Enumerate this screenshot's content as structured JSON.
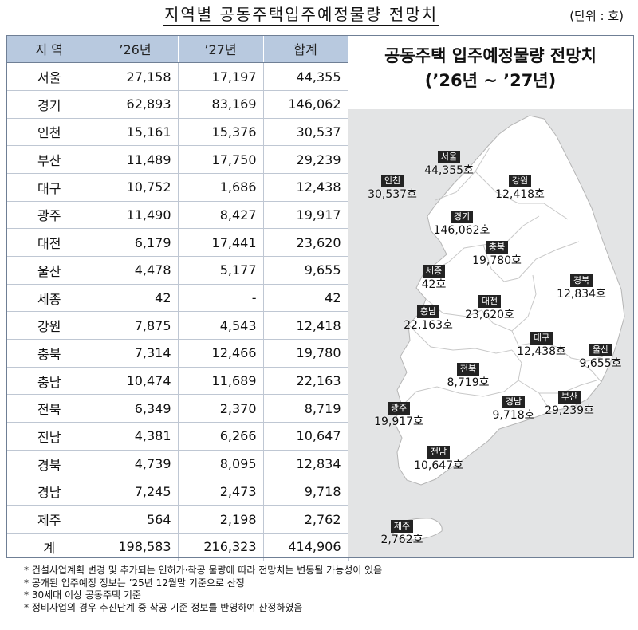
{
  "title": "지역별 공동주택입주예정물량 전망치",
  "unit": "(단위 : 호)",
  "table": {
    "headers": [
      "지 역",
      "’26년",
      "’27년",
      "합계"
    ],
    "rows": [
      [
        "서울",
        "27,158",
        "17,197",
        "44,355"
      ],
      [
        "경기",
        "62,893",
        "83,169",
        "146,062"
      ],
      [
        "인천",
        "15,161",
        "15,376",
        "30,537"
      ],
      [
        "부산",
        "11,489",
        "17,750",
        "29,239"
      ],
      [
        "대구",
        "10,752",
        "1,686",
        "12,438"
      ],
      [
        "광주",
        "11,490",
        "8,427",
        "19,917"
      ],
      [
        "대전",
        "6,179",
        "17,441",
        "23,620"
      ],
      [
        "울산",
        "4,478",
        "5,177",
        "9,655"
      ],
      [
        "세종",
        "42",
        "-",
        "42"
      ],
      [
        "강원",
        "7,875",
        "4,543",
        "12,418"
      ],
      [
        "충북",
        "7,314",
        "12,466",
        "19,780"
      ],
      [
        "충남",
        "10,474",
        "11,689",
        "22,163"
      ],
      [
        "전북",
        "6,349",
        "2,370",
        "8,719"
      ],
      [
        "전남",
        "4,381",
        "6,266",
        "10,647"
      ],
      [
        "경북",
        "4,739",
        "8,095",
        "12,834"
      ],
      [
        "경남",
        "7,245",
        "2,473",
        "9,718"
      ],
      [
        "제주",
        "564",
        "2,198",
        "2,762"
      ]
    ],
    "total": [
      "계",
      "198,583",
      "216,323",
      "414,906"
    ]
  },
  "map": {
    "title": "공동주택 입주예정물량 전망치",
    "subtitle": "(’26년 ~ ’27년)",
    "labels": [
      {
        "key": "seoul",
        "region": "서울",
        "value": "44,355호"
      },
      {
        "key": "incheon",
        "region": "인천",
        "value": "30,537호"
      },
      {
        "key": "gangwon",
        "region": "강원",
        "value": "12,418호"
      },
      {
        "key": "gyeonggi",
        "region": "경기",
        "value": "146,062호"
      },
      {
        "key": "chungbuk",
        "region": "충북",
        "value": "19,780호"
      },
      {
        "key": "sejong",
        "region": "세종",
        "value": "42호"
      },
      {
        "key": "gyeongbuk",
        "region": "경북",
        "value": "12,834호"
      },
      {
        "key": "daejeon",
        "region": "대전",
        "value": "23,620호"
      },
      {
        "key": "chungnam",
        "region": "충남",
        "value": "22,163호"
      },
      {
        "key": "daegu",
        "region": "대구",
        "value": "12,438호"
      },
      {
        "key": "ulsan",
        "region": "울산",
        "value": "9,655호"
      },
      {
        "key": "jeonbuk",
        "region": "전북",
        "value": "8,719호"
      },
      {
        "key": "gwangju",
        "region": "광주",
        "value": "19,917호"
      },
      {
        "key": "gyeongnam",
        "region": "경남",
        "value": "9,718호"
      },
      {
        "key": "busan",
        "region": "부산",
        "value": "29,239호"
      },
      {
        "key": "jeonnam",
        "region": "전남",
        "value": "10,647호"
      },
      {
        "key": "jeju",
        "region": "제주",
        "value": "2,762호"
      }
    ]
  },
  "notes": [
    "* 건설사업계획 변경 및 추가되는 인허가·착공 물량에 따라 전망치는 변동될 가능성이 있음",
    "* 공개된 입주예정 정보는 ’25년 12월말 기준으로 산정",
    "* 30세대 이상 공동주택 기준",
    "* 정비사업의 경우 추진단계 중 착공 기준 정보를 반영하여 산정하였음"
  ],
  "colors": {
    "header_bg": "#b8c9df",
    "map_bg": "#e3e4e5",
    "land": "#ffffff",
    "label_bg": "#232323"
  }
}
